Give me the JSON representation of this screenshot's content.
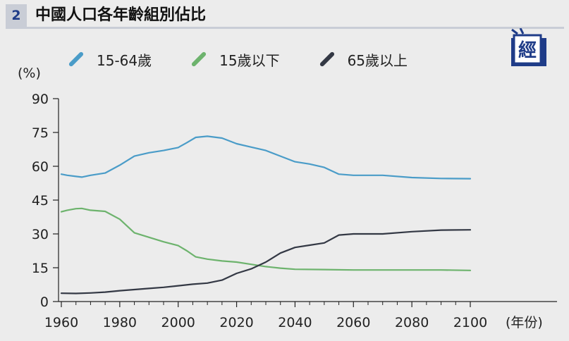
{
  "header": {
    "number": "2",
    "title": "中國人口各年齡組別佔比",
    "badge_char": "經"
  },
  "colors": {
    "working_age": "#4a9cc8",
    "children": "#6db36d",
    "elderly": "#333844",
    "badge_blue": "#1f3c88"
  },
  "chart_data": {
    "type": "line",
    "title": "中國人口各年齡組別佔比",
    "ylabel": "(%)",
    "xlabel": "(年份)",
    "xlim": [
      1960,
      2100
    ],
    "ylim": [
      0,
      90
    ],
    "xticks": [
      "1960",
      "1980",
      "2000",
      "2020",
      "2040",
      "2060",
      "2080",
      "2100"
    ],
    "yticks": [
      "0",
      "15",
      "30",
      "45",
      "60",
      "75",
      "90"
    ],
    "legend_position": "top",
    "grid": false,
    "series": [
      {
        "name": "15-64歲",
        "color": "#4a9cc8",
        "x": [
          1960,
          1962,
          1965,
          1967,
          1970,
          1975,
          1980,
          1985,
          1990,
          1995,
          2000,
          2003,
          2006,
          2010,
          2015,
          2020,
          2025,
          2030,
          2035,
          2040,
          2045,
          2050,
          2055,
          2060,
          2070,
          2080,
          2090,
          2100
        ],
        "values": [
          56.5,
          56.0,
          55.5,
          55.2,
          56.0,
          57.0,
          60.5,
          64.5,
          66.0,
          67.0,
          68.3,
          70.5,
          72.8,
          73.3,
          72.5,
          70.0,
          68.5,
          67.0,
          64.5,
          62.0,
          61.0,
          59.5,
          56.5,
          56.0,
          56.0,
          55.0,
          54.6,
          54.5
        ]
      },
      {
        "name": "15歲以下",
        "color": "#6db36d",
        "x": [
          1960,
          1962,
          1965,
          1967,
          1970,
          1975,
          1980,
          1985,
          1990,
          1995,
          2000,
          2003,
          2006,
          2010,
          2015,
          2020,
          2025,
          2030,
          2035,
          2040,
          2050,
          2060,
          2070,
          2080,
          2090,
          2100
        ],
        "values": [
          39.8,
          40.5,
          41.2,
          41.3,
          40.5,
          40.0,
          36.5,
          30.5,
          28.5,
          26.5,
          24.8,
          22.5,
          19.8,
          18.8,
          18.0,
          17.5,
          16.5,
          15.5,
          14.8,
          14.3,
          14.2,
          14.0,
          14.0,
          14.0,
          14.0,
          13.8
        ]
      },
      {
        "name": "65歲以上",
        "color": "#333844",
        "x": [
          1960,
          1965,
          1970,
          1975,
          1980,
          1985,
          1990,
          1995,
          2000,
          2005,
          2010,
          2015,
          2020,
          2025,
          2030,
          2035,
          2040,
          2045,
          2050,
          2055,
          2060,
          2070,
          2080,
          2090,
          2100
        ],
        "values": [
          3.7,
          3.6,
          3.8,
          4.2,
          4.8,
          5.3,
          5.8,
          6.3,
          7.0,
          7.7,
          8.2,
          9.5,
          12.5,
          14.5,
          17.5,
          21.5,
          24.0,
          25.0,
          26.0,
          29.5,
          30.0,
          30.0,
          31.0,
          31.7,
          31.8
        ]
      }
    ]
  }
}
